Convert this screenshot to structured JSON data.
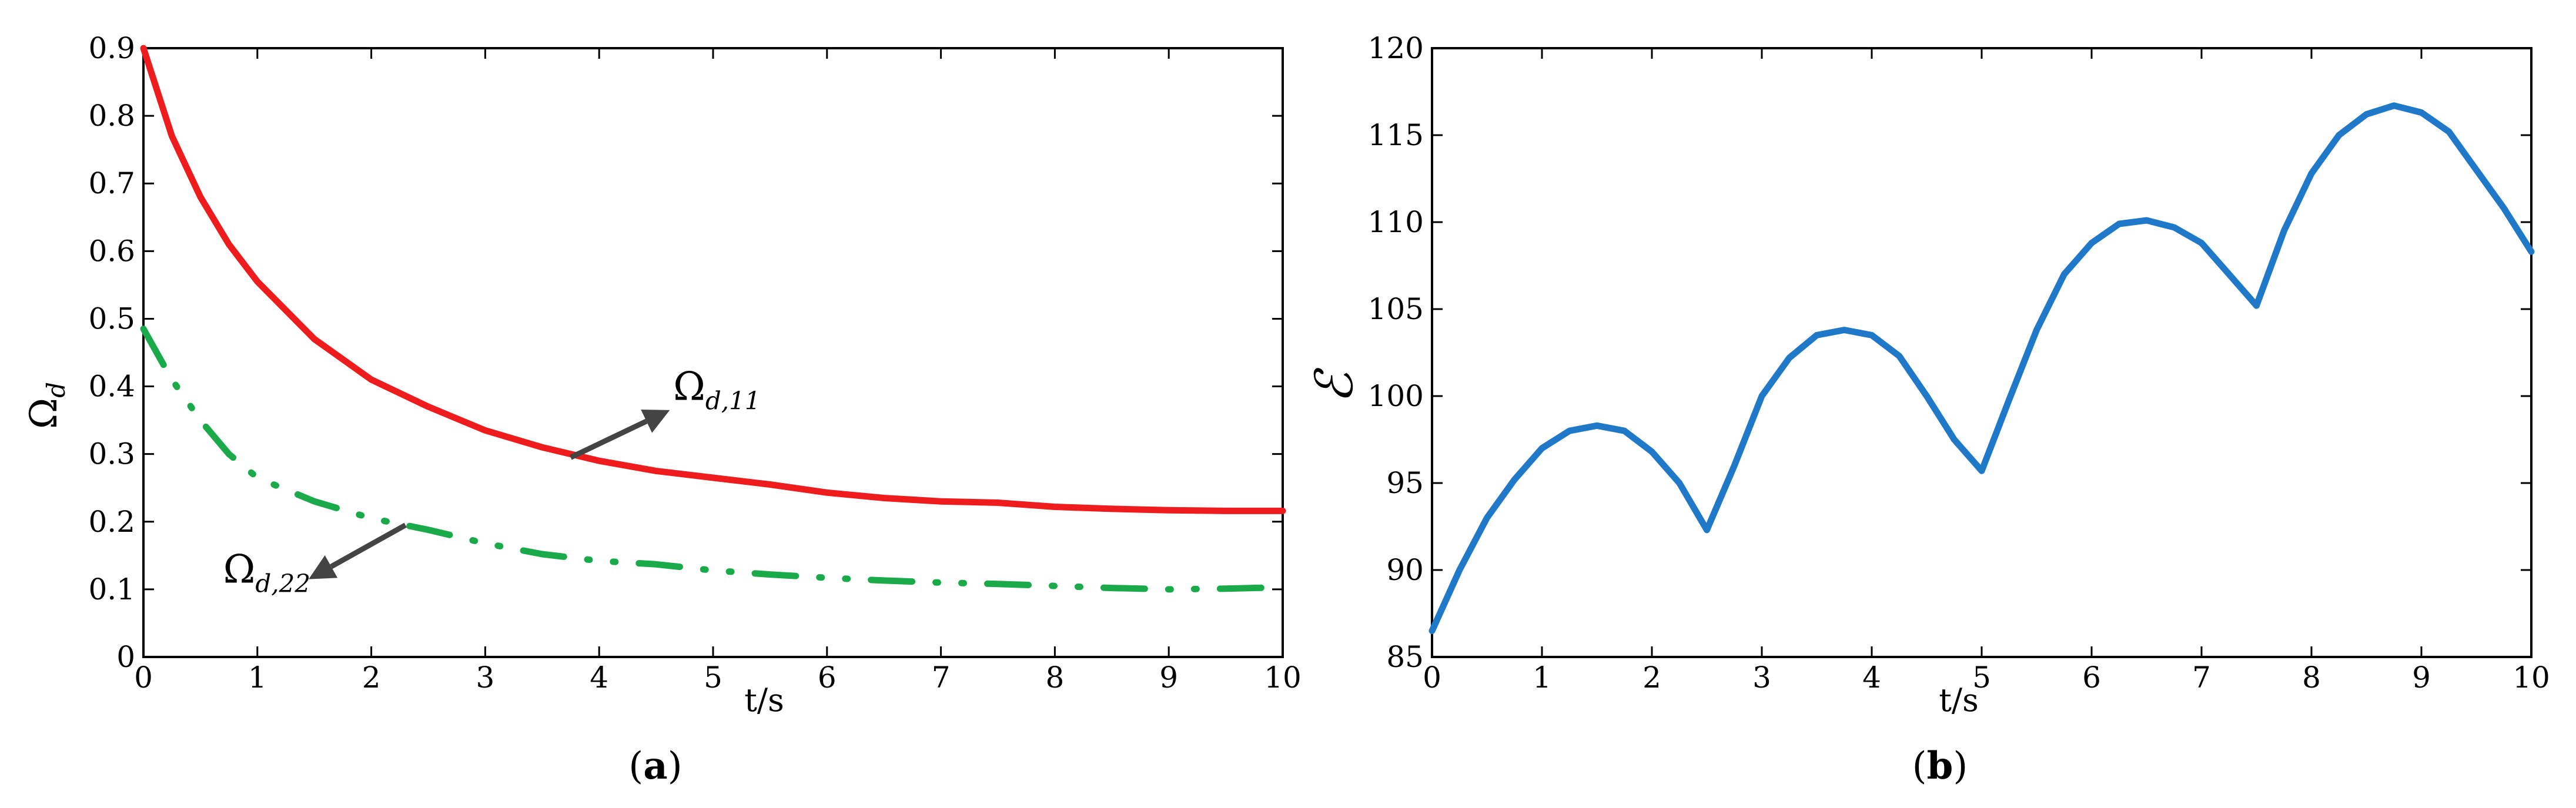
{
  "chart_data": [
    {
      "type": "line",
      "panel_label_prefix": "(",
      "panel_label": "a",
      "panel_label_suffix": ")",
      "xlabel": "t/s",
      "ylabel": "Ω",
      "ylabel_sub": "d",
      "xlim": [
        0,
        10
      ],
      "ylim": [
        0,
        0.9
      ],
      "xticks": [
        "0",
        "1",
        "2",
        "3",
        "4",
        "5",
        "6",
        "7",
        "8",
        "9",
        "10"
      ],
      "yticks": [
        "0",
        "0.1",
        "0.2",
        "0.3",
        "0.4",
        "0.5",
        "0.6",
        "0.7",
        "0.8",
        "0.9"
      ],
      "grid": false,
      "series": [
        {
          "color": "#ee1c1c",
          "style": "solid",
          "x": [
            0,
            0.25,
            0.5,
            0.75,
            1,
            1.5,
            2,
            2.5,
            3,
            3.5,
            4,
            4.5,
            5,
            5.5,
            6,
            6.5,
            7,
            7.5,
            8,
            8.5,
            9,
            9.5,
            10
          ],
          "y": [
            0.9,
            0.77,
            0.68,
            0.61,
            0.555,
            0.47,
            0.41,
            0.37,
            0.335,
            0.31,
            0.29,
            0.275,
            0.265,
            0.255,
            0.243,
            0.235,
            0.23,
            0.228,
            0.222,
            0.219,
            0.217,
            0.216,
            0.216
          ]
        },
        {
          "color": "#1aaa4a",
          "style": "dashdot",
          "x": [
            0,
            0.25,
            0.5,
            0.75,
            1,
            1.5,
            2,
            2.5,
            3,
            3.5,
            4,
            4.5,
            5,
            5.5,
            6,
            6.5,
            7,
            7.5,
            8,
            8.5,
            9,
            9.5,
            10
          ],
          "y": [
            0.485,
            0.41,
            0.35,
            0.3,
            0.265,
            0.23,
            0.205,
            0.188,
            0.168,
            0.152,
            0.142,
            0.137,
            0.128,
            0.122,
            0.117,
            0.113,
            0.11,
            0.108,
            0.105,
            0.102,
            0.1,
            0.101,
            0.103
          ]
        }
      ],
      "annotations": [
        {
          "symbol": "Ω",
          "subscript": "d,11",
          "arrow_from": [
            3.75,
            0.295
          ],
          "arrow_to": [
            4.62,
            0.365
          ],
          "text_at": [
            4.65,
            0.38
          ]
        },
        {
          "symbol": "Ω",
          "subscript": "d,22",
          "arrow_from": [
            2.3,
            0.195
          ],
          "arrow_to": [
            1.45,
            0.115
          ],
          "text_at": [
            0.7,
            0.11
          ]
        }
      ]
    },
    {
      "type": "line",
      "panel_label_prefix": "(",
      "panel_label": "b",
      "panel_label_suffix": ")",
      "xlabel": "t/s",
      "ylabel": "ℰ",
      "xlim": [
        0,
        10
      ],
      "ylim": [
        85,
        120
      ],
      "xticks": [
        "0",
        "1",
        "2",
        "3",
        "4",
        "5",
        "6",
        "7",
        "8",
        "9",
        "10"
      ],
      "yticks": [
        "85",
        "90",
        "95",
        "100",
        "105",
        "110",
        "115",
        "120"
      ],
      "grid": false,
      "series": [
        {
          "color": "#1f78c8",
          "style": "solid",
          "x": [
            0,
            0.25,
            0.5,
            0.75,
            1,
            1.25,
            1.5,
            1.75,
            2,
            2.25,
            2.5,
            2.75,
            3,
            3.25,
            3.5,
            3.75,
            4,
            4.25,
            4.5,
            4.75,
            5,
            5.25,
            5.5,
            5.75,
            6,
            6.25,
            6.5,
            6.75,
            7,
            7.25,
            7.5,
            7.75,
            8,
            8.25,
            8.5,
            8.75,
            9,
            9.25,
            9.5,
            9.75,
            10
          ],
          "y": [
            86.5,
            90.0,
            93.0,
            95.2,
            97.0,
            98.0,
            98.3,
            98.0,
            96.8,
            95.0,
            92.3,
            96.0,
            100.0,
            102.2,
            103.5,
            103.8,
            103.5,
            102.3,
            100.0,
            97.5,
            95.7,
            99.8,
            103.8,
            107.0,
            108.8,
            109.9,
            110.1,
            109.7,
            108.8,
            107.0,
            105.2,
            109.5,
            112.8,
            115.0,
            116.2,
            116.7,
            116.3,
            115.2,
            113.0,
            110.8,
            108.3
          ]
        }
      ],
      "annotations": []
    }
  ]
}
